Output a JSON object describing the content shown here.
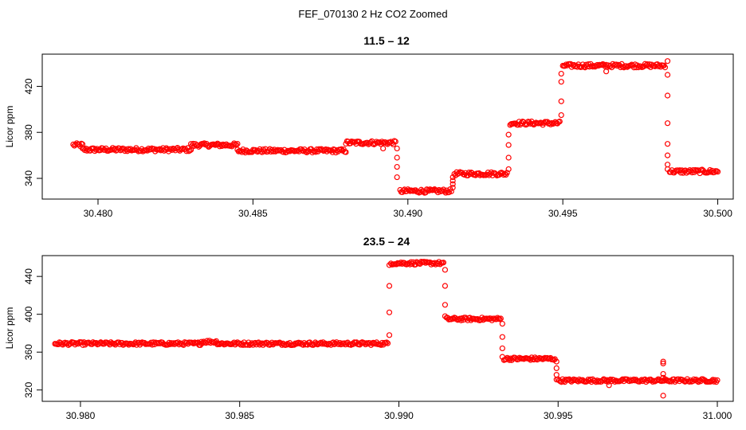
{
  "figure": {
    "title": "FEF_070130  2 Hz CO2 Zoomed"
  },
  "colors": {
    "points": "#ff0000",
    "axes": "#000000"
  },
  "chart_data": [
    {
      "type": "scatter",
      "title": "11.5 – 12",
      "xlabel": "",
      "ylabel": "Licor ppm",
      "xlim": [
        30.4782,
        30.5005
      ],
      "ylim": [
        322,
        448
      ],
      "xticks": [
        30.48,
        30.485,
        30.49,
        30.495,
        30.5
      ],
      "xtick_labels": [
        "30.480",
        "30.485",
        "30.490",
        "30.495",
        "30.500"
      ],
      "yticks": [
        340,
        380,
        420
      ],
      "ytick_labels": [
        "340",
        "380",
        "420"
      ],
      "grid": false,
      "marker": "open-circle",
      "segments": [
        {
          "x_start": 30.4792,
          "x_end": 30.4795,
          "y": 369
        },
        {
          "x_start": 30.4795,
          "x_end": 30.483,
          "y": 365
        },
        {
          "x_start": 30.483,
          "x_end": 30.4845,
          "y": 369
        },
        {
          "x_start": 30.4845,
          "x_end": 30.488,
          "y": 364
        },
        {
          "x_start": 30.488,
          "x_end": 30.4896,
          "y": 371
        },
        {
          "x_start": 30.48975,
          "x_end": 30.4914,
          "y": 329
        },
        {
          "x_start": 30.4915,
          "x_end": 30.4932,
          "y": 344
        },
        {
          "x_start": 30.4933,
          "x_end": 30.4949,
          "y": 388
        },
        {
          "x_start": 30.495,
          "x_end": 30.4983,
          "y": 438
        },
        {
          "x_start": 30.49845,
          "x_end": 30.5,
          "y": 346
        }
      ],
      "transitions": [
        {
          "x": 30.48965,
          "y": [
            366,
            358,
            350,
            341
          ]
        },
        {
          "x": 30.49145,
          "y": [
            332,
            335,
            338,
            341
          ]
        },
        {
          "x": 30.49325,
          "y": [
            348,
            358,
            369,
            378
          ]
        },
        {
          "x": 30.49495,
          "y": [
            395,
            407,
            424,
            431
          ]
        },
        {
          "x": 30.49838,
          "y": [
            442,
            430,
            412,
            388,
            370,
            360,
            352,
            348
          ]
        }
      ],
      "outliers": [
        {
          "x": 30.4892,
          "y": 366
        },
        {
          "x": 30.4964,
          "y": 433
        }
      ]
    },
    {
      "type": "scatter",
      "title": "23.5 – 24",
      "xlabel": "",
      "ylabel": "Licor ppm",
      "xlim": [
        30.9788,
        31.0005
      ],
      "ylim": [
        308,
        462
      ],
      "xticks": [
        30.98,
        30.985,
        30.99,
        30.995,
        31.0
      ],
      "xtick_labels": [
        "30.980",
        "30.985",
        "30.990",
        "30.995",
        "31.000"
      ],
      "yticks": [
        320,
        360,
        400,
        440
      ],
      "ytick_labels": [
        "320",
        "360",
        "400",
        "440"
      ],
      "grid": false,
      "marker": "open-circle",
      "segments": [
        {
          "x_start": 30.9792,
          "x_end": 30.9838,
          "y": 369
        },
        {
          "x_start": 30.9838,
          "x_end": 30.9843,
          "y": 371
        },
        {
          "x_start": 30.9843,
          "x_end": 30.98965,
          "y": 369
        },
        {
          "x_start": 30.98975,
          "x_end": 30.9914,
          "y": 454
        },
        {
          "x_start": 30.9915,
          "x_end": 30.9932,
          "y": 395
        },
        {
          "x_start": 30.9933,
          "x_end": 30.9949,
          "y": 353
        },
        {
          "x_start": 30.995,
          "x_end": 31.0,
          "y": 330
        }
      ],
      "transitions": [
        {
          "x": 30.9897,
          "y": [
            378,
            402,
            430,
            452
          ]
        },
        {
          "x": 30.99145,
          "y": [
            447,
            430,
            410,
            398
          ]
        },
        {
          "x": 30.99325,
          "y": [
            390,
            376,
            364,
            355
          ]
        },
        {
          "x": 30.99495,
          "y": [
            350,
            343,
            336,
            331
          ]
        },
        {
          "x": 30.9983,
          "y": [
            350,
            348,
            337,
            333
          ]
        }
      ],
      "outliers": [
        {
          "x": 30.9983,
          "y": 314
        },
        {
          "x": 30.9966,
          "y": 325
        }
      ]
    }
  ]
}
